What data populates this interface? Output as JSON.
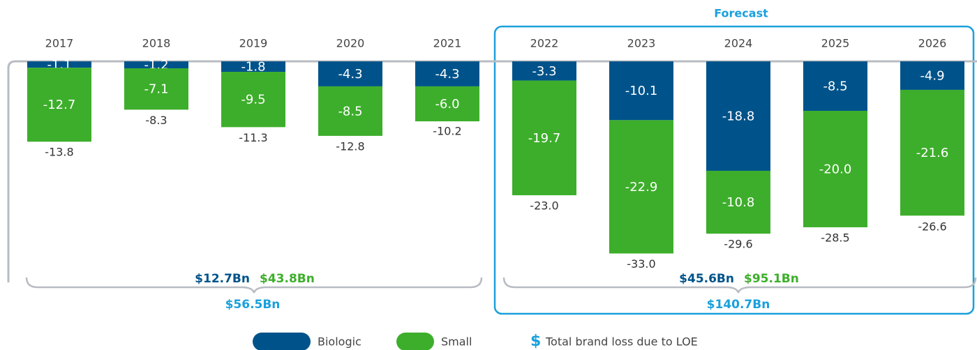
{
  "chart_data": {
    "type": "stacked_bar",
    "categories": [
      "2017",
      "2018",
      "2019",
      "2020",
      "2021",
      "2022",
      "2023",
      "2024",
      "2025",
      "2026"
    ],
    "series": [
      {
        "name": "Biologic",
        "color": "#00538a",
        "values": [
          -1.1,
          -1.2,
          -1.8,
          -4.3,
          -4.3,
          -3.3,
          -10.1,
          -18.8,
          -8.5,
          -4.9
        ],
        "value_labels": [
          "-1.1",
          "-1.2",
          "-1.8",
          "-4.3",
          "-4.3",
          "-3.3",
          "-10.1",
          "-18.8",
          "-8.5",
          "-4.9"
        ]
      },
      {
        "name": "Small",
        "color": "#3dae2b",
        "values": [
          -12.7,
          -7.1,
          -9.5,
          -8.5,
          -6.0,
          -19.7,
          -22.9,
          -10.8,
          -20.0,
          -21.6
        ],
        "value_labels": [
          "-12.7",
          "-7.1",
          "-9.5",
          "-8.5",
          "-6.0",
          "-19.7",
          "-22.9",
          "-10.8",
          "-20.0",
          "-21.6"
        ]
      }
    ],
    "totals": {
      "values": [
        -13.8,
        -8.3,
        -11.3,
        -12.8,
        -10.2,
        -23.0,
        -33.0,
        -29.6,
        -28.5,
        -26.6
      ],
      "value_labels": [
        "-13.8",
        "-8.3",
        "-11.3",
        "-12.8",
        "-10.2",
        "-23.0",
        "-33.0",
        "-29.6",
        "-28.5",
        "-26.6"
      ]
    },
    "ylim": [
      -35,
      0
    ],
    "forecast_label": "Forecast",
    "periods": [
      {
        "biologic": "$12.7Bn",
        "small": "$43.8Bn",
        "total": "$56.5Bn"
      },
      {
        "biologic": "$45.6Bn",
        "small": "$95.1Bn",
        "total": "$140.7Bn"
      }
    ],
    "legend_note": {
      "symbol": "$",
      "text": "Total brand loss due to LOE"
    }
  }
}
